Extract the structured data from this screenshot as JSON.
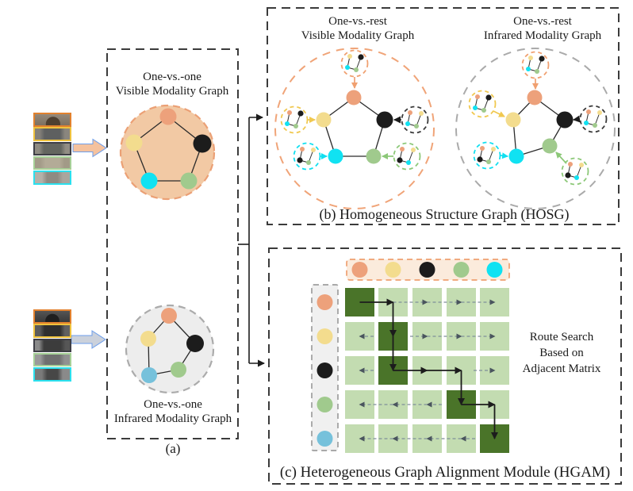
{
  "palette": {
    "orange": "#EDA17B",
    "yellow": "#F3DC8E",
    "black": "#1C1C1C",
    "green": "#A0CA8D",
    "cyan": "#10E2F2",
    "blue": "#76C1DB",
    "ring_orange": "#F0A070",
    "ring_yellow": "#F0C84F",
    "ring_black": "#3A3A3A",
    "ring_cyan": "#10DFF0",
    "ring_green": "#8CC878",
    "box_border": "#3B3B3B",
    "edge_line": "#2B2B2B",
    "scan_line": "#7F8E99"
  },
  "inputs": {
    "frame_colors": [
      "#E2812E",
      "#EFC23D",
      "#3F3F46",
      "#A6D097",
      "#2BE0EE"
    ],
    "visible_arrow_fill": "#F5C29E",
    "infrared_arrow_fill": "#CBD1DB",
    "arrow_outline": "#6D9EEB"
  },
  "panel_a": {
    "caption": "(a)",
    "visible_graph": {
      "title1": "One-vs.-one",
      "title2": "Visible Modality Graph",
      "fill": "#F2C9A4",
      "ring": "#EBA075",
      "nodes": [
        "orange",
        "yellow",
        "black",
        "cyan",
        "green"
      ]
    },
    "infrared_graph": {
      "title1": "One-vs.-one",
      "title2": "Infrared Modality Graph",
      "fill": "#EDEDED",
      "ring": "#ABABAB",
      "nodes": [
        "orange",
        "yellow",
        "black",
        "blue",
        "green"
      ]
    }
  },
  "panel_b": {
    "caption": "(b) Homogeneous Structure Graph (HOSG)",
    "visible_graph": {
      "title1": "One-vs.-rest",
      "title2": "Visible Modality Graph",
      "ring": "#F0A478",
      "nodes": [
        "orange",
        "yellow",
        "black",
        "cyan",
        "green"
      ]
    },
    "infrared_graph": {
      "title1": "One-vs.-rest",
      "title2": "Infrared Modality Graph",
      "ring": "#AAAAAA",
      "nodes": [
        "orange",
        "yellow",
        "black",
        "cyan",
        "green"
      ]
    },
    "satellite_dots": {
      "orange": [
        "yellow",
        "black",
        "cyan",
        "green"
      ],
      "yellow": [
        "orange",
        "black",
        "cyan",
        "green"
      ],
      "black": [
        "orange",
        "yellow",
        "cyan",
        "green"
      ],
      "cyan": [
        "orange",
        "yellow",
        "black",
        "green"
      ],
      "green": [
        "orange",
        "yellow",
        "black",
        "cyan"
      ]
    }
  },
  "panel_c": {
    "caption": "(c) Heterogeneous Graph Alignment Module (HGAM)",
    "route_label": [
      "Route Search",
      "Based on",
      "Adjacent Matrix"
    ],
    "matrix": {
      "rows": 5,
      "cols": 5,
      "cell_light": "#C3DCB1",
      "cell_dark": "#4A7429",
      "dark_cells": [
        [
          0,
          0
        ],
        [
          1,
          1
        ],
        [
          2,
          1
        ],
        [
          3,
          3
        ],
        [
          4,
          4
        ]
      ],
      "top_bar": {
        "fill": "#FBEBDC",
        "border": "#EFA071",
        "nodes": [
          "orange",
          "yellow",
          "black",
          "green",
          "cyan"
        ]
      },
      "left_bar": {
        "fill": "#F0F0F0",
        "border": "#9E9E9E",
        "nodes": [
          "orange",
          "yellow",
          "black",
          "green",
          "blue"
        ]
      }
    }
  }
}
